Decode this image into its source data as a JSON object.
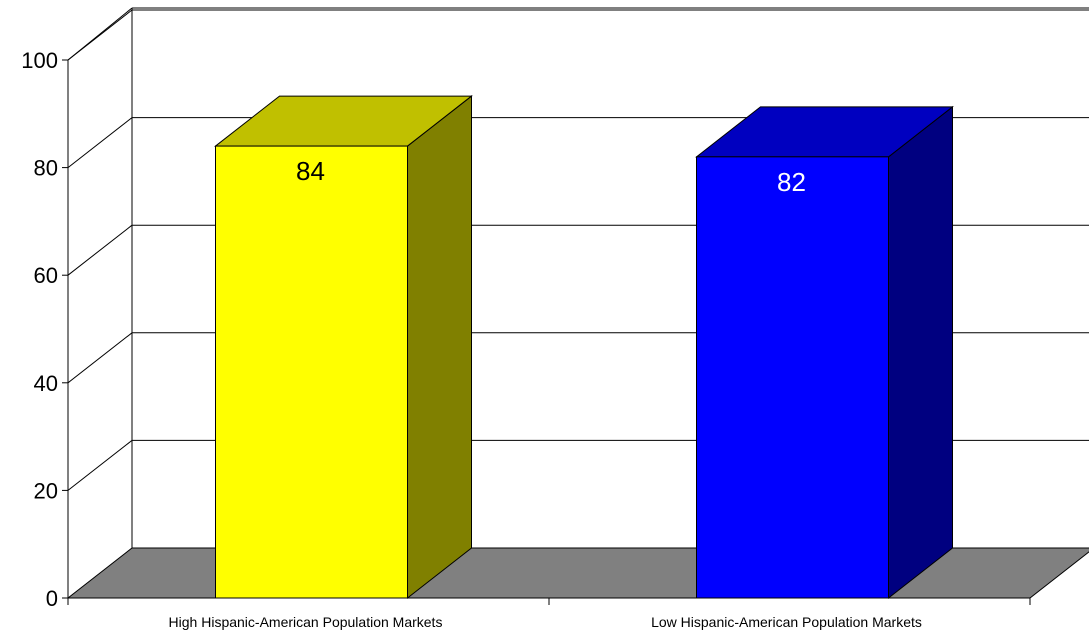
{
  "chart_data": {
    "type": "bar",
    "style": "3d-column",
    "categories": [
      "High Hispanic-American Population Markets",
      "Low Hispanic-American Population Markets"
    ],
    "values": [
      84,
      82
    ],
    "data_labels": [
      "84",
      "82"
    ],
    "ylim": [
      0,
      100
    ],
    "yticks": [
      0,
      20,
      40,
      60,
      80,
      100
    ],
    "ytick_labels": [
      "0",
      "20",
      "40",
      "60",
      "80",
      "100"
    ],
    "grid": true,
    "legend": "none",
    "title": "",
    "xlabel": "",
    "ylabel": "",
    "colors": {
      "bars": [
        {
          "front": "#ffff00",
          "top": "#c0c000",
          "side": "#808000",
          "label": "#000000"
        },
        {
          "front": "#0000ff",
          "top": "#0000c0",
          "side": "#000080",
          "label": "#ffffff"
        }
      ],
      "floor": "#808080",
      "grid": "#000000"
    }
  }
}
